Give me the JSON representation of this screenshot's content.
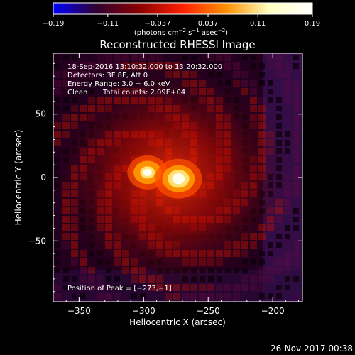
{
  "chart_data": {
    "type": "heatmap",
    "title": "Reconstructed RHESSI Image",
    "xlabel": "Heliocentric X (arcsec)",
    "ylabel": "Heliocentric Y (arcsec)",
    "xlim": [
      -370,
      -177
    ],
    "ylim": [
      -98,
      98
    ],
    "x_ticks": [
      -350,
      -300,
      -250,
      -200
    ],
    "y_ticks": [
      -50,
      0,
      50
    ],
    "x_tick_labels": [
      "−350",
      "−300",
      "−250",
      "−200"
    ],
    "y_tick_labels": [
      "−50",
      "0",
      "50"
    ],
    "grid": false,
    "colorbar": {
      "min": -0.19,
      "max": 0.19,
      "ticks": [
        -0.19,
        -0.11,
        -0.037,
        0.037,
        0.11,
        0.19
      ],
      "tick_labels": [
        "−0.19",
        "−0.11",
        "−0.037",
        "0.037",
        "0.11",
        "0.19"
      ],
      "label_main": "(photons cm",
      "label_exp1": "−2",
      "label_mid": " s",
      "label_exp2": "−1",
      "label_end": " asec",
      "label_exp3": "−2",
      "label_close": ")",
      "colormap": [
        "#0000ff",
        "#300030",
        "#8a0000",
        "#ff2000",
        "#ff9000",
        "#ffffc0",
        "#ffffff"
      ]
    },
    "sources": [
      {
        "x": -297,
        "y": 4,
        "peak": 0.15,
        "sigma": 6
      },
      {
        "x": -273,
        "y": -1,
        "peak": 0.19,
        "sigma": 7
      }
    ],
    "annotations": {
      "time_range": "18-Sep-2016 13:10:32.000 to 13:20:32.000",
      "detectors": "Detectors: 3F 8F, Att 0",
      "energy": "Energy Range: 3.0 − 6.0 keV",
      "clean": "Clean",
      "counts": "Total counts: 2.09E+04",
      "peak": "Position of Peak = [−273,−1]"
    }
  },
  "footer": {
    "timestamp": "26-Nov-2017 00:38"
  }
}
